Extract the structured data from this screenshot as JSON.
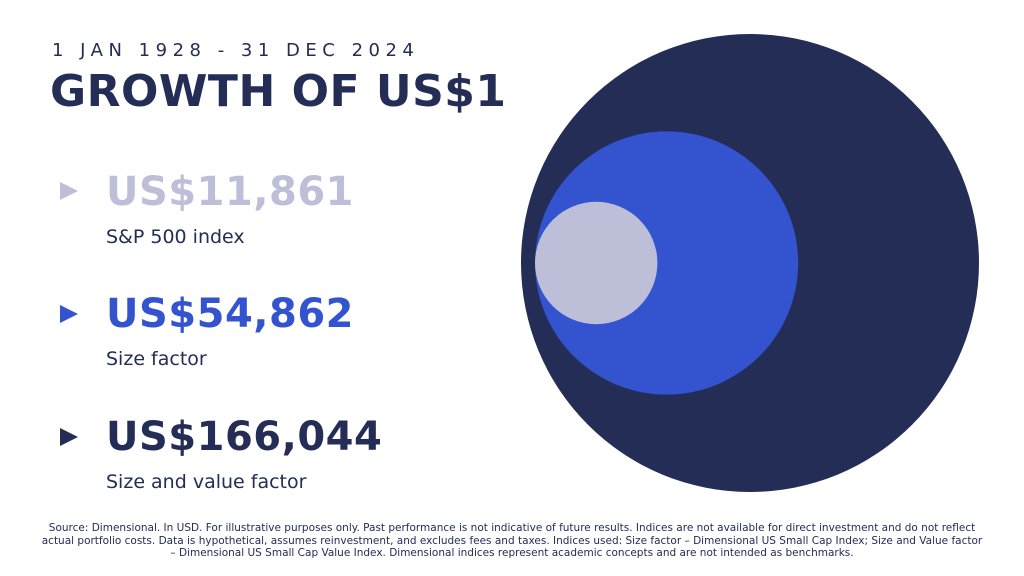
{
  "header": {
    "date_range": "1 JAN 1928 - 31 DEC 2024",
    "title": "GROWTH OF US$1"
  },
  "chart_data": {
    "type": "bubble",
    "series": [
      {
        "name": "S&P 500 index",
        "value": 11861,
        "value_label": "US$11,861",
        "color": "#bdbfd9",
        "marker_icon": "triangle-right-icon"
      },
      {
        "name": "Size factor",
        "value": 54862,
        "value_label": "US$54,862",
        "color": "#3353cf",
        "marker_icon": "triangle-right-icon"
      },
      {
        "name": "Size and value factor",
        "value": 166044,
        "value_label": "US$166,044",
        "color": "#232d55",
        "marker_icon": "triangle-right-icon"
      }
    ],
    "encoding": "circle area proportional to value",
    "alignment": "left-tangent"
  },
  "footer": {
    "source": "Source: Dimensional. In USD. For illustrative purposes only. Past performance is not indicative of future results. Indices are not available for direct investment and do not reflect actual portfolio costs. Data is hypothetical, assumes reinvestment, and excludes fees and taxes. Indices used: Size factor – Dimensional US Small Cap Index; Size and Value factor – Dimensional US Small Cap Value Index. Dimensional indices represent academic concepts and are not intended as benchmarks."
  }
}
